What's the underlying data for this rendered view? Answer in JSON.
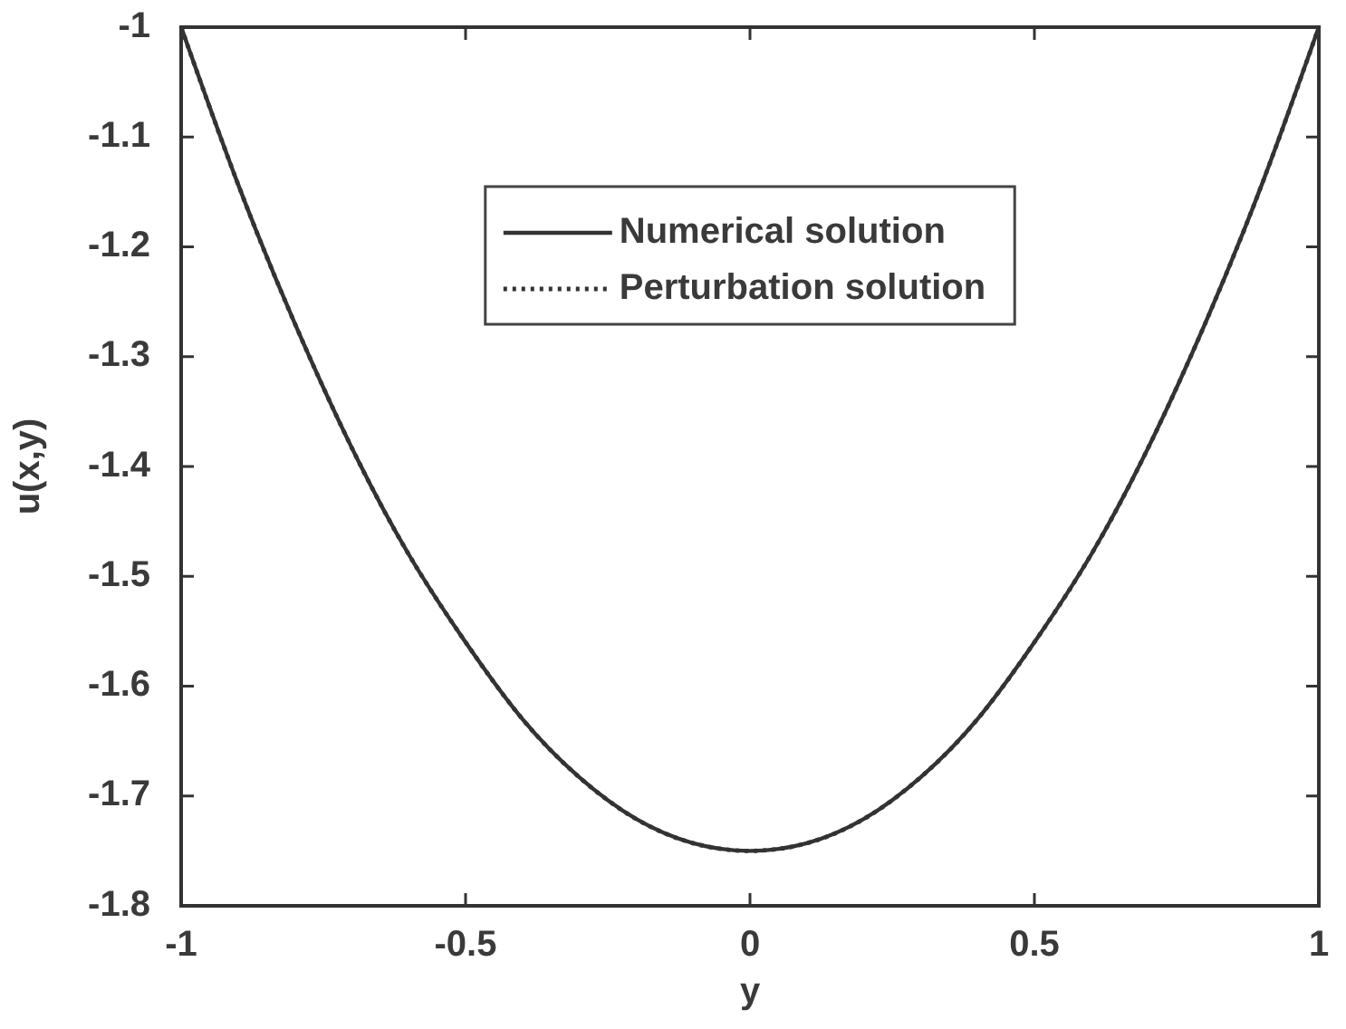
{
  "chart_data": {
    "type": "line",
    "xlabel": "y",
    "ylabel": "u(x,y)",
    "x": [
      -1,
      -0.9,
      -0.8,
      -0.7,
      -0.6,
      -0.5,
      -0.4,
      -0.3,
      -0.2,
      -0.1,
      0,
      0.1,
      0.2,
      0.3,
      0.4,
      0.5,
      0.6,
      0.7,
      0.8,
      0.9,
      1
    ],
    "xlim": [
      -1,
      1
    ],
    "ylim": [
      -1.8,
      -1
    ],
    "xticks": [
      -1,
      -0.5,
      0,
      0.5,
      1
    ],
    "yticks": [
      -1.8,
      -1.7,
      -1.6,
      -1.5,
      -1.4,
      -1.3,
      -1.2,
      -1.1,
      -1
    ],
    "legend": "top",
    "series": [
      {
        "name": "Numerical solution",
        "color": "#333333",
        "line_style": "solid",
        "values": [
          -1,
          -1.143,
          -1.27,
          -1.383,
          -1.48,
          -1.56,
          -1.63,
          -1.683,
          -1.721,
          -1.743,
          -1.75,
          -1.743,
          -1.721,
          -1.683,
          -1.63,
          -1.56,
          -1.48,
          -1.383,
          -1.27,
          -1.143,
          -1
        ]
      },
      {
        "name": "Perturbation solution",
        "color": "#333333",
        "line_style": "dotted",
        "values": [
          -1,
          -1.143,
          -1.27,
          -1.383,
          -1.48,
          -1.56,
          -1.63,
          -1.683,
          -1.721,
          -1.743,
          -1.75,
          -1.743,
          -1.721,
          -1.683,
          -1.63,
          -1.56,
          -1.48,
          -1.383,
          -1.27,
          -1.143,
          -1
        ]
      }
    ]
  }
}
